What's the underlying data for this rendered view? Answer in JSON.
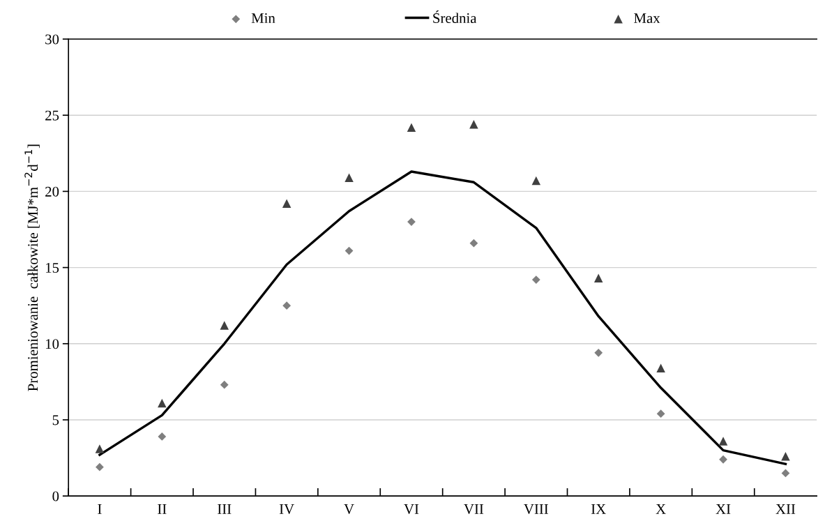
{
  "chart_data": {
    "type": "line",
    "ylabel": "Promieniowanie  całkowite [MJ*m$^{−2}$d$^{−1}$]",
    "categories": [
      "I",
      "II",
      "III",
      "IV",
      "V",
      "VI",
      "VII",
      "VIII",
      "IX",
      "X",
      "XI",
      "XII"
    ],
    "series": [
      {
        "name": "Min",
        "type": "scatter",
        "marker": "diamond",
        "color": "#7f7f7f",
        "values": [
          1.9,
          3.9,
          7.3,
          12.5,
          16.1,
          18.0,
          16.6,
          14.2,
          9.4,
          5.4,
          2.4,
          1.5
        ]
      },
      {
        "name": "Średnia",
        "marker": "none",
        "line_style": "solid",
        "color": "#000000",
        "values": [
          2.7,
          5.3,
          10.0,
          15.2,
          18.7,
          21.3,
          20.6,
          17.6,
          11.8,
          7.1,
          3.0,
          2.1
        ]
      },
      {
        "name": "Max",
        "type": "scatter",
        "marker": "triangle",
        "color": "#404040",
        "values": [
          3.1,
          6.1,
          11.2,
          19.2,
          20.9,
          24.2,
          24.4,
          20.7,
          14.3,
          8.4,
          3.6,
          2.6
        ]
      }
    ],
    "ylim": [
      0,
      30
    ],
    "yticks": [
      0,
      5,
      10,
      15,
      20,
      25,
      30
    ],
    "grid": "y",
    "legend": "top"
  }
}
